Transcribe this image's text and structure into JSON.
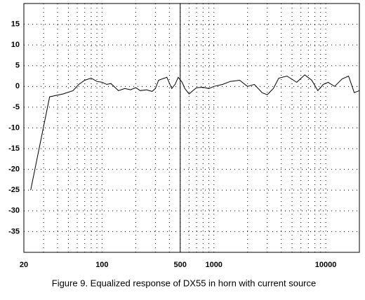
{
  "chart_data": {
    "type": "line",
    "title": "Figure 9.  Equalized response of DX55 in horn with current source",
    "xscale": "log",
    "xlim": [
      20,
      20000
    ],
    "ylim": [
      -40,
      20
    ],
    "xticks": [
      20,
      100,
      500,
      1000,
      10000
    ],
    "x_minor_ticks": [
      30,
      40,
      50,
      60,
      70,
      80,
      90,
      200,
      300,
      400,
      600,
      700,
      800,
      900,
      2000,
      3000,
      4000,
      5000,
      6000,
      7000,
      8000,
      9000
    ],
    "yticks": [
      15,
      10,
      5,
      0,
      -5,
      -10,
      -15,
      -20,
      -25,
      -30,
      -35
    ],
    "vline": 500,
    "grid": true,
    "series": [
      {
        "color": "#000000",
        "x": [
          23,
          34,
          45,
          55,
          62,
          70,
          80,
          90,
          100,
          110,
          120,
          140,
          160,
          180,
          200,
          220,
          250,
          280,
          300,
          320,
          380,
          420,
          450,
          480,
          520,
          550,
          600,
          650,
          700,
          800,
          900,
          1000,
          1200,
          1400,
          1700,
          2000,
          2300,
          2700,
          3000,
          3400,
          3800,
          4500,
          5500,
          6500,
          7500,
          8500,
          9500,
          10500,
          12000,
          14000,
          16000,
          18000,
          20000
        ],
        "values": [
          -25,
          -2.5,
          -1.8,
          -1,
          0.5,
          1.5,
          2,
          1.2,
          1,
          0.5,
          0.7,
          -1,
          -0.5,
          -0.8,
          -0.3,
          -1,
          -0.8,
          -1.2,
          -0.5,
          1.5,
          2.2,
          -0.5,
          0.5,
          2.2,
          1,
          -0.5,
          -1.8,
          -1,
          -0.3,
          -0.2,
          -0.5,
          0,
          0.5,
          1.2,
          1.5,
          0,
          0.5,
          -1.5,
          -2,
          -0.5,
          2,
          2.5,
          1,
          2.8,
          1.5,
          -1,
          0.5,
          1,
          0,
          1.8,
          2.5,
          -1.5,
          -1
        ]
      }
    ]
  }
}
